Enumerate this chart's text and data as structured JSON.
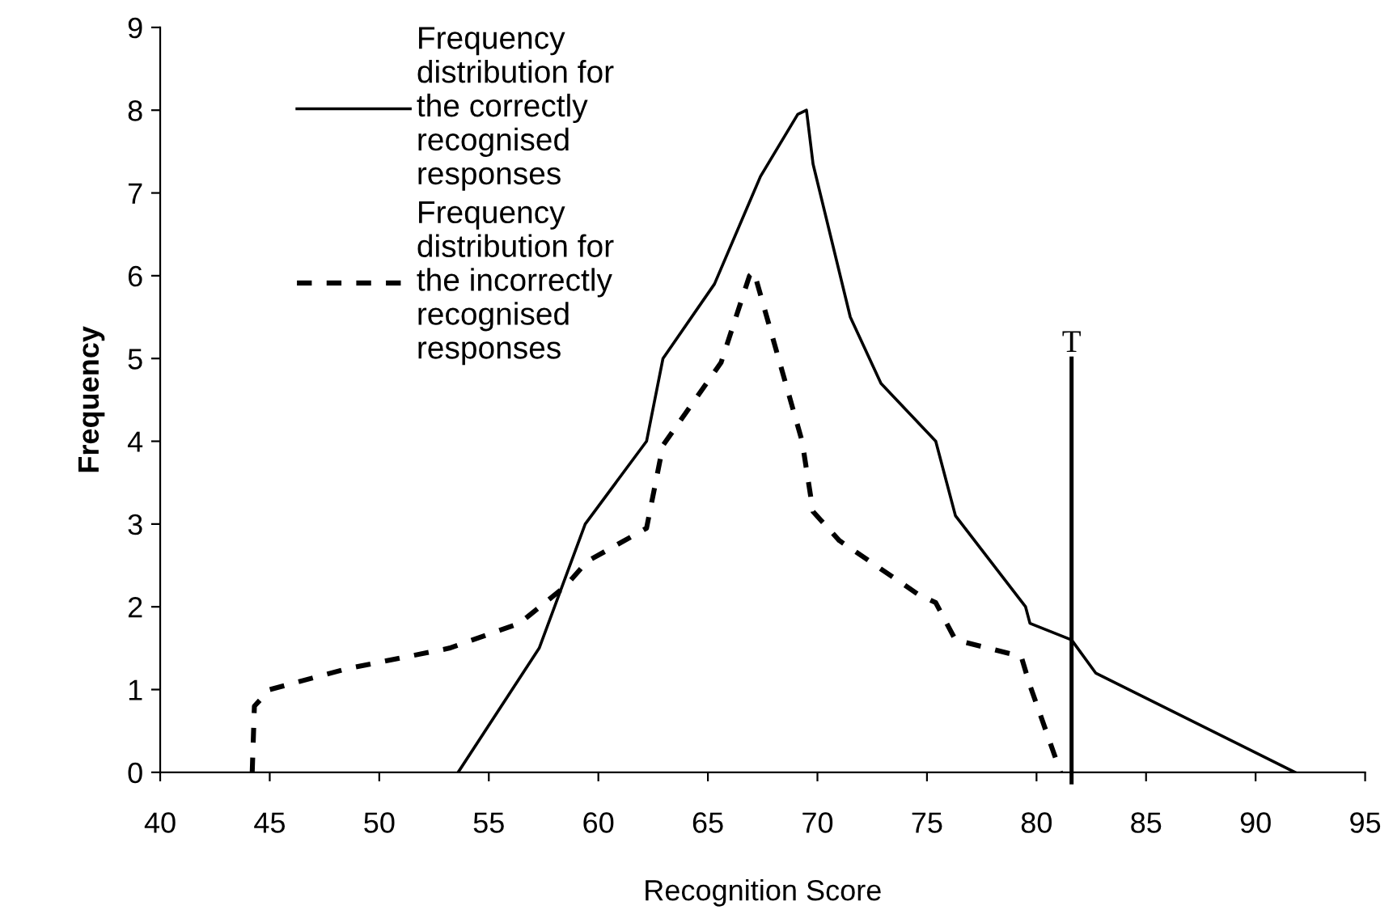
{
  "chart_data": {
    "type": "line",
    "xlabel": "Recognition Score",
    "ylabel": "Frequency",
    "xlim": [
      40,
      95
    ],
    "xticks": [
      40,
      45,
      50,
      55,
      60,
      65,
      70,
      75,
      80,
      85,
      90,
      95
    ],
    "ylim": [
      0,
      9
    ],
    "yticks": [
      0,
      1,
      2,
      3,
      4,
      5,
      6,
      7,
      8,
      9
    ],
    "grid": false,
    "legend": "top left",
    "marker": "none",
    "series": [
      {
        "name": "Frequency distribution for the correctly recognised responses",
        "color": "#000000",
        "line_style": "solid",
        "x": [
          53.6,
          57.3,
          59.4,
          62.2,
          62.95,
          65.3,
          67.4,
          69.1,
          69.5,
          69.8,
          71.5,
          72.9,
          75.4,
          76.3,
          79.5,
          79.7,
          81.6,
          82.7,
          91.8
        ],
        "values": [
          0,
          1.5,
          3.0,
          4.0,
          5.0,
          5.9,
          7.2,
          7.95,
          8.0,
          7.35,
          5.5,
          4.7,
          4.0,
          3.1,
          2.0,
          1.8,
          1.6,
          1.2,
          0
        ]
      },
      {
        "name": "Frequency distribution for the incorrectly recognised responses",
        "color": "#000000",
        "line_style": "dashed",
        "x": [
          44.2,
          44.3,
          45.0,
          48.5,
          53.2,
          56.4,
          58.5,
          59.5,
          62.2,
          62.95,
          65.6,
          66.9,
          67.1,
          69.3,
          69.8,
          71.0,
          74.6,
          75.4,
          76.3,
          79.3,
          79.7,
          81.1
        ],
        "values": [
          0,
          0.8,
          1.0,
          1.25,
          1.5,
          1.8,
          2.25,
          2.55,
          2.95,
          3.95,
          4.95,
          6.0,
          6.05,
          4.0,
          3.15,
          2.8,
          2.15,
          2.05,
          1.6,
          1.4,
          1.05,
          0
        ]
      }
    ],
    "ref_lines": [
      {
        "axis": "x",
        "value": 81.6,
        "color": "#000000"
      }
    ],
    "annotations": [
      {
        "text": "T",
        "x": 81.6,
        "y": 5
      }
    ]
  }
}
